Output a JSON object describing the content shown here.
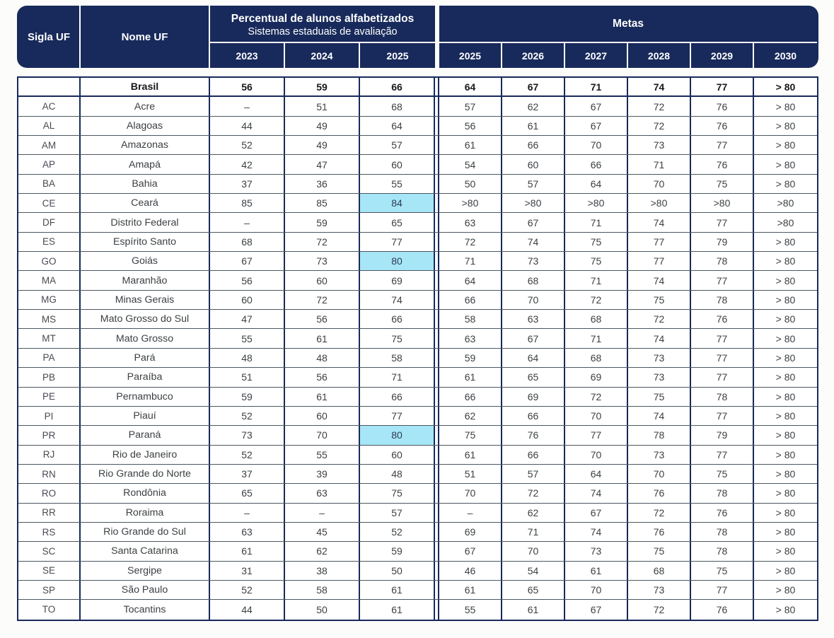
{
  "colors": {
    "navy": "#182A5B",
    "highlight": "#A7E6F6"
  },
  "header": {
    "sigla": "Sigla UF",
    "nome": "Nome UF",
    "aval_title": "Percentual de alunos alfabetizados",
    "aval_subtitle": "Sistemas estaduais de avaliação",
    "aval_years": [
      "2023",
      "2024",
      "2025"
    ],
    "metas_title": "Metas",
    "metas_years": [
      "2025",
      "2026",
      "2027",
      "2028",
      "2029",
      "2030"
    ]
  },
  "summary_row": {
    "sigla": "",
    "nome": "Brasil",
    "values": [
      "56",
      "59",
      "66",
      "64",
      "67",
      "71",
      "74",
      "77",
      "> 80"
    ],
    "hl": []
  },
  "rows": [
    {
      "sigla": "AC",
      "nome": "Acre",
      "values": [
        "–",
        "51",
        "68",
        "57",
        "62",
        "67",
        "72",
        "76",
        "> 80"
      ],
      "hl": []
    },
    {
      "sigla": "AL",
      "nome": "Alagoas",
      "values": [
        "44",
        "49",
        "64",
        "56",
        "61",
        "67",
        "72",
        "76",
        "> 80"
      ],
      "hl": []
    },
    {
      "sigla": "AM",
      "nome": "Amazonas",
      "values": [
        "52",
        "49",
        "57",
        "61",
        "66",
        "70",
        "73",
        "77",
        "> 80"
      ],
      "hl": []
    },
    {
      "sigla": "AP",
      "nome": "Amapá",
      "values": [
        "42",
        "47",
        "60",
        "54",
        "60",
        "66",
        "71",
        "76",
        "> 80"
      ],
      "hl": []
    },
    {
      "sigla": "BA",
      "nome": "Bahia",
      "values": [
        "37",
        "36",
        "55",
        "50",
        "57",
        "64",
        "70",
        "75",
        "> 80"
      ],
      "hl": []
    },
    {
      "sigla": "CE",
      "nome": "Ceará",
      "values": [
        "85",
        "85",
        "84",
        ">80",
        ">80",
        ">80",
        ">80",
        ">80",
        ">80"
      ],
      "hl": [
        2
      ]
    },
    {
      "sigla": "DF",
      "nome": "Distrito Federal",
      "values": [
        "–",
        "59",
        "65",
        "63",
        "67",
        "71",
        "74",
        "77",
        ">80"
      ],
      "hl": []
    },
    {
      "sigla": "ES",
      "nome": "Espírito Santo",
      "values": [
        "68",
        "72",
        "77",
        "72",
        "74",
        "75",
        "77",
        "79",
        "> 80"
      ],
      "hl": []
    },
    {
      "sigla": "GO",
      "nome": "Goiás",
      "values": [
        "67",
        "73",
        "80",
        "71",
        "73",
        "75",
        "77",
        "78",
        "> 80"
      ],
      "hl": [
        2
      ]
    },
    {
      "sigla": "MA",
      "nome": "Maranhão",
      "values": [
        "56",
        "60",
        "69",
        "64",
        "68",
        "71",
        "74",
        "77",
        "> 80"
      ],
      "hl": []
    },
    {
      "sigla": "MG",
      "nome": "Minas Gerais",
      "values": [
        "60",
        "72",
        "74",
        "66",
        "70",
        "72",
        "75",
        "78",
        "> 80"
      ],
      "hl": []
    },
    {
      "sigla": "MS",
      "nome": "Mato Grosso do Sul",
      "values": [
        "47",
        "56",
        "66",
        "58",
        "63",
        "68",
        "72",
        "76",
        "> 80"
      ],
      "hl": []
    },
    {
      "sigla": "MT",
      "nome": "Mato Grosso",
      "values": [
        "55",
        "61",
        "75",
        "63",
        "67",
        "71",
        "74",
        "77",
        "> 80"
      ],
      "hl": []
    },
    {
      "sigla": "PA",
      "nome": "Pará",
      "values": [
        "48",
        "48",
        "58",
        "59",
        "64",
        "68",
        "73",
        "77",
        "> 80"
      ],
      "hl": []
    },
    {
      "sigla": "PB",
      "nome": "Paraíba",
      "values": [
        "51",
        "56",
        "71",
        "61",
        "65",
        "69",
        "73",
        "77",
        "> 80"
      ],
      "hl": []
    },
    {
      "sigla": "PE",
      "nome": "Pernambuco",
      "values": [
        "59",
        "61",
        "66",
        "66",
        "69",
        "72",
        "75",
        "78",
        "> 80"
      ],
      "hl": []
    },
    {
      "sigla": "PI",
      "nome": "Piauí",
      "values": [
        "52",
        "60",
        "77",
        "62",
        "66",
        "70",
        "74",
        "77",
        "> 80"
      ],
      "hl": []
    },
    {
      "sigla": "PR",
      "nome": "Paraná",
      "values": [
        "73",
        "70",
        "80",
        "75",
        "76",
        "77",
        "78",
        "79",
        "> 80"
      ],
      "hl": [
        2
      ]
    },
    {
      "sigla": "RJ",
      "nome": "Rio de Janeiro",
      "values": [
        "52",
        "55",
        "60",
        "61",
        "66",
        "70",
        "73",
        "77",
        "> 80"
      ],
      "hl": []
    },
    {
      "sigla": "RN",
      "nome": "Rio Grande do Norte",
      "values": [
        "37",
        "39",
        "48",
        "51",
        "57",
        "64",
        "70",
        "75",
        "> 80"
      ],
      "hl": []
    },
    {
      "sigla": "RO",
      "nome": "Rondônia",
      "values": [
        "65",
        "63",
        "75",
        "70",
        "72",
        "74",
        "76",
        "78",
        "> 80"
      ],
      "hl": []
    },
    {
      "sigla": "RR",
      "nome": "Roraima",
      "values": [
        "–",
        "–",
        "57",
        "–",
        "62",
        "67",
        "72",
        "76",
        "> 80"
      ],
      "hl": []
    },
    {
      "sigla": "RS",
      "nome": "Rio Grande do Sul",
      "values": [
        "63",
        "45",
        "52",
        "69",
        "71",
        "74",
        "76",
        "78",
        "> 80"
      ],
      "hl": []
    },
    {
      "sigla": "SC",
      "nome": "Santa Catarina",
      "values": [
        "61",
        "62",
        "59",
        "67",
        "70",
        "73",
        "75",
        "78",
        "> 80"
      ],
      "hl": []
    },
    {
      "sigla": "SE",
      "nome": "Sergipe",
      "values": [
        "31",
        "38",
        "50",
        "46",
        "54",
        "61",
        "68",
        "75",
        "> 80"
      ],
      "hl": []
    },
    {
      "sigla": "SP",
      "nome": "São Paulo",
      "values": [
        "52",
        "58",
        "61",
        "61",
        "65",
        "70",
        "73",
        "77",
        "> 80"
      ],
      "hl": []
    },
    {
      "sigla": "TO",
      "nome": "Tocantins",
      "values": [
        "44",
        "50",
        "61",
        "55",
        "61",
        "67",
        "72",
        "76",
        "> 80"
      ],
      "hl": []
    }
  ]
}
